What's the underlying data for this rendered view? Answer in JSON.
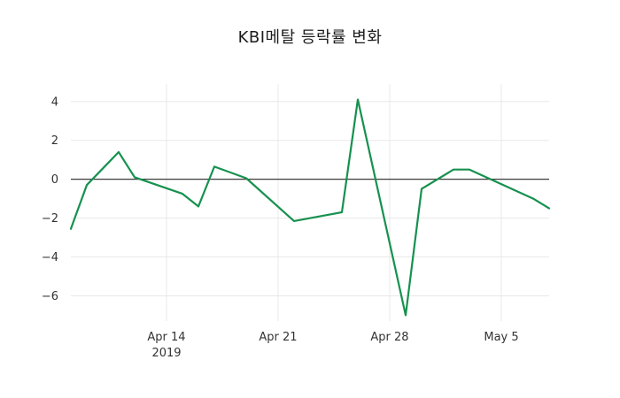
{
  "chart_data": {
    "type": "line",
    "title": "KBI메탈 등락률 변화",
    "xlabel": "",
    "ylabel": "",
    "ylim": [
      -7.3,
      4.9
    ],
    "y_ticks": [
      4,
      2,
      0,
      -2,
      -4,
      -6
    ],
    "x_range_days": [
      0,
      30
    ],
    "x_ticks": [
      {
        "day": 6,
        "label": "Apr 14",
        "sublabel": "2019"
      },
      {
        "day": 13,
        "label": "Apr 21",
        "sublabel": ""
      },
      {
        "day": 20,
        "label": "Apr 28",
        "sublabel": ""
      },
      {
        "day": 27,
        "label": "May 5",
        "sublabel": ""
      }
    ],
    "grid": true,
    "zero_line": true,
    "legend": "none",
    "series": [
      {
        "name": "",
        "color": "#16914f",
        "points": [
          {
            "date": "2019-04-08",
            "day": 0,
            "value": -2.55
          },
          {
            "date": "2019-04-09",
            "day": 1,
            "value": -0.3
          },
          {
            "date": "2019-04-11",
            "day": 3,
            "value": 1.4
          },
          {
            "date": "2019-04-12",
            "day": 4,
            "value": 0.1
          },
          {
            "date": "2019-04-15",
            "day": 7,
            "value": -0.75
          },
          {
            "date": "2019-04-16",
            "day": 8,
            "value": -1.4
          },
          {
            "date": "2019-04-17",
            "day": 9,
            "value": 0.65
          },
          {
            "date": "2019-04-19",
            "day": 11,
            "value": 0.05
          },
          {
            "date": "2019-04-22",
            "day": 14,
            "value": -2.15
          },
          {
            "date": "2019-04-24",
            "day": 16,
            "value": -1.85
          },
          {
            "date": "2019-04-25",
            "day": 17,
            "value": -1.7
          },
          {
            "date": "2019-04-26",
            "day": 18,
            "value": 4.1
          },
          {
            "date": "2019-04-29",
            "day": 21,
            "value": -7.0
          },
          {
            "date": "2019-04-30",
            "day": 22,
            "value": -0.5
          },
          {
            "date": "2019-05-02",
            "day": 24,
            "value": 0.5
          },
          {
            "date": "2019-05-03",
            "day": 25,
            "value": 0.5
          },
          {
            "date": "2019-05-07",
            "day": 29,
            "value": -1.0
          },
          {
            "date": "2019-05-08",
            "day": 30,
            "value": -1.5
          }
        ]
      }
    ]
  },
  "style": {
    "background": "#ffffff",
    "grid_color": "#e8e8e8",
    "zero_line_color": "#3c3c3c",
    "line_color": "#16914f",
    "title_color": "#1c1c1c",
    "tick_color": "#333333"
  }
}
